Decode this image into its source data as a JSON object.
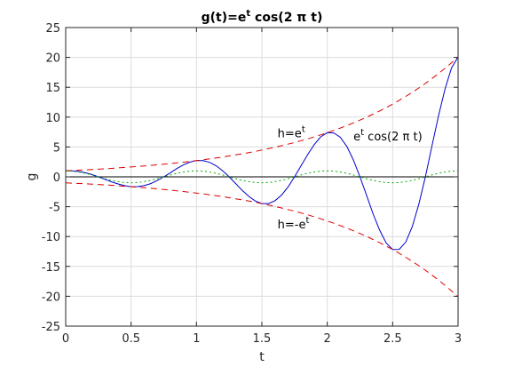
{
  "chart_data": {
    "type": "line",
    "title": {
      "base": "g(t)=e",
      "sup": "t",
      "rest": " cos(2 π t)"
    },
    "xlabel": "t",
    "ylabel": "g",
    "xlim": [
      0,
      3
    ],
    "ylim": [
      -25,
      25
    ],
    "xticks": [
      0,
      0.5,
      1,
      1.5,
      2,
      2.5,
      3
    ],
    "xtick_labels": [
      "0",
      "0.5",
      "1",
      "1.5",
      "2",
      "2.5",
      "3"
    ],
    "yticks": [
      -25,
      -20,
      -15,
      -10,
      -5,
      0,
      5,
      10,
      15,
      20,
      25
    ],
    "ytick_labels": [
      "-25",
      "-20",
      "-15",
      "-10",
      "-5",
      "0",
      "5",
      "10",
      "15",
      "20",
      "25"
    ],
    "grid": true,
    "x": [
      0,
      0.05,
      0.1,
      0.15,
      0.2,
      0.25,
      0.3,
      0.35,
      0.4,
      0.45,
      0.5,
      0.55,
      0.6,
      0.65,
      0.7,
      0.75,
      0.8,
      0.85,
      0.9,
      0.95,
      1,
      1.05,
      1.1,
      1.15,
      1.2,
      1.25,
      1.3,
      1.35,
      1.4,
      1.45,
      1.5,
      1.55,
      1.6,
      1.65,
      1.7,
      1.75,
      1.8,
      1.85,
      1.9,
      1.95,
      2,
      2.05,
      2.1,
      2.15,
      2.2,
      2.25,
      2.3,
      2.35,
      2.4,
      2.45,
      2.5,
      2.55,
      2.6,
      2.65,
      2.7,
      2.75,
      2.8,
      2.85,
      2.9,
      2.95,
      3
    ],
    "series": [
      {
        "color": "#0000cc",
        "style": "solid",
        "values": [
          1,
          1,
          0.89,
          0.68,
          0.38,
          0,
          -0.42,
          -0.83,
          -1.19,
          -1.48,
          -1.65,
          -1.64,
          -1.48,
          -1.13,
          -0.62,
          0,
          0.69,
          1.38,
          2.0,
          2.47,
          2.72,
          2.71,
          2.43,
          1.86,
          1.03,
          0,
          -1.13,
          -2.27,
          -3.27,
          -4.05,
          -4.48,
          -4.48,
          -4.01,
          -3.07,
          -1.69,
          0,
          1.87,
          3.72,
          5.39,
          6.7,
          7.39,
          7.35,
          6.62,
          5.07,
          2.81,
          0,
          -3.08,
          -6.17,
          -8.92,
          -11.05,
          -12.18,
          -12.15,
          -10.92,
          -8.35,
          -4.58,
          0,
          5.1,
          10.17,
          14.7,
          18.21,
          20.09
        ]
      },
      {
        "color": "#dd0000",
        "style": "dashed",
        "values": [
          1,
          1.05,
          1.11,
          1.16,
          1.22,
          1.28,
          1.35,
          1.42,
          1.49,
          1.57,
          1.65,
          1.73,
          1.82,
          1.92,
          2.01,
          2.12,
          2.23,
          2.34,
          2.46,
          2.59,
          2.72,
          2.86,
          3.0,
          3.16,
          3.32,
          3.49,
          3.67,
          3.86,
          4.06,
          4.26,
          4.48,
          4.71,
          4.95,
          5.21,
          5.47,
          5.75,
          6.05,
          6.36,
          6.69,
          7.03,
          7.39,
          7.77,
          8.17,
          8.58,
          9.03,
          9.49,
          9.97,
          10.49,
          11.02,
          11.59,
          12.18,
          12.81,
          13.46,
          14.15,
          14.88,
          15.64,
          16.44,
          17.29,
          18.17,
          19.11,
          20.09
        ]
      },
      {
        "color": "#dd0000",
        "style": "dashed",
        "values": [
          -1,
          -1.05,
          -1.11,
          -1.16,
          -1.22,
          -1.28,
          -1.35,
          -1.42,
          -1.49,
          -1.57,
          -1.65,
          -1.73,
          -1.82,
          -1.92,
          -2.01,
          -2.12,
          -2.23,
          -2.34,
          -2.46,
          -2.59,
          -2.72,
          -2.86,
          -3.0,
          -3.16,
          -3.32,
          -3.49,
          -3.67,
          -3.86,
          -4.06,
          -4.26,
          -4.48,
          -4.71,
          -4.95,
          -5.21,
          -5.47,
          -5.75,
          -6.05,
          -6.36,
          -6.69,
          -7.03,
          -7.39,
          -7.77,
          -8.17,
          -8.58,
          -9.03,
          -9.49,
          -9.97,
          -10.49,
          -11.02,
          -11.59,
          -12.18,
          -12.81,
          -13.46,
          -14.15,
          -14.88,
          -15.64,
          -16.44,
          -17.29,
          -18.17,
          -19.11,
          -20.09
        ]
      },
      {
        "color": "#00aa00",
        "style": "dotted",
        "values": [
          1,
          0.95,
          0.81,
          0.59,
          0.31,
          0,
          -0.31,
          -0.59,
          -0.81,
          -0.95,
          -1,
          -0.95,
          -0.81,
          -0.59,
          -0.31,
          0,
          0.31,
          0.59,
          0.81,
          0.95,
          1,
          0.95,
          0.81,
          0.59,
          0.31,
          0,
          -0.31,
          -0.59,
          -0.81,
          -0.95,
          -1,
          -0.95,
          -0.81,
          -0.59,
          -0.31,
          0,
          0.31,
          0.59,
          0.81,
          0.95,
          1,
          0.95,
          0.81,
          0.59,
          0.31,
          0,
          -0.31,
          -0.59,
          -0.81,
          -0.95,
          -1,
          -0.95,
          -0.81,
          -0.59,
          -0.31,
          0,
          0.31,
          0.59,
          0.81,
          0.95,
          1
        ]
      }
    ],
    "reference_line": {
      "y": 0,
      "color": "#000000"
    },
    "annotations": [
      {
        "base": "h=e",
        "sup": "t",
        "rest": "",
        "x": 1.62,
        "y": 6.6
      },
      {
        "base": "e",
        "sup": "t",
        "rest": " cos(2 π t)",
        "x": 2.2,
        "y": 6.1
      },
      {
        "base": "h=-e",
        "sup": "t",
        "rest": "",
        "x": 1.62,
        "y": -8.6
      }
    ]
  }
}
